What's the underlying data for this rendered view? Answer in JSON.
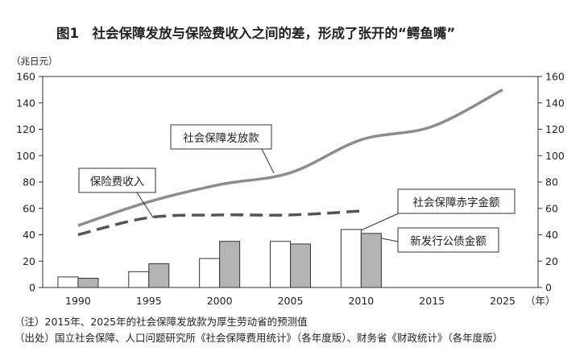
{
  "figure": {
    "title": "图1　社会保障发放与保险费收入之间的差，形成了张开的“鳄鱼嘴”",
    "unit_label": "（兆日元）",
    "x_unit_label": "（年）",
    "note": "（注）2015年、2025年的社会保障发放款为厚生劳动省的预测值",
    "source": "（出处）国立社会保障、人口问题研究所《社会保障费用统计》（各年度版）、财务省《财政统计》（各年度版）"
  },
  "chart_data": {
    "type": "line+bar",
    "title": "图1　社会保障发放与保险费收入之间的差，形成了张开的“鳄鱼嘴”",
    "ylabel": "（兆日元）",
    "xlabel": "（年）",
    "ylim": [
      0,
      160
    ],
    "yticks": [
      0,
      20,
      40,
      60,
      80,
      100,
      120,
      140,
      160
    ],
    "x_categories": [
      "1990",
      "1995",
      "2000",
      "2005",
      "2010",
      "2015",
      "2025"
    ],
    "grid": false,
    "line_series": [
      {
        "name": "社会保障发放款",
        "style": "solid",
        "color": "#8c8c8c",
        "x": [
          "1990",
          "1995",
          "2000",
          "2005",
          "2010",
          "2015",
          "2025"
        ],
        "values": [
          47,
          65,
          78,
          87,
          112,
          122,
          150
        ]
      },
      {
        "name": "保险费收入",
        "style": "dashed",
        "color": "#555555",
        "x": [
          "1990",
          "1995",
          "2000",
          "2005",
          "2010"
        ],
        "values": [
          40,
          53,
          55,
          55,
          58
        ]
      }
    ],
    "bar_series": [
      {
        "name": "社会保障赤字金额",
        "fill": "#ffffff",
        "x": [
          "1990",
          "1995",
          "2000",
          "2005",
          "2010"
        ],
        "values": [
          8,
          12,
          22,
          35,
          44
        ]
      },
      {
        "name": "新发行公债金额",
        "fill": "#b4b4b4",
        "x": [
          "1990",
          "1995",
          "2000",
          "2005",
          "2010"
        ],
        "values": [
          7,
          18,
          35,
          33,
          41
        ]
      }
    ]
  }
}
